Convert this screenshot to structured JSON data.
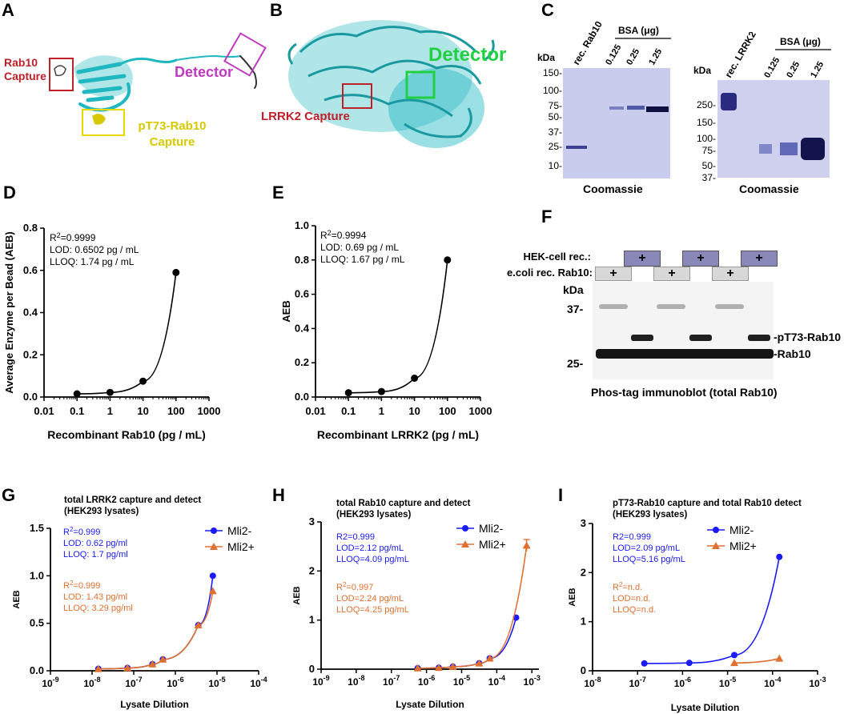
{
  "panels": {
    "A": "A",
    "B": "B",
    "C": "C",
    "D": "D",
    "E": "E",
    "F": "F",
    "G": "G",
    "H": "H",
    "I": "I"
  },
  "panelA": {
    "rab10_capture": "Rab10\nCapture",
    "rab10_line1": "Rab10",
    "rab10_line2": "Capture",
    "detector": "Detector",
    "pt73_line1": "pT73-Rab10",
    "pt73_line2": "Capture",
    "colors": {
      "rab10": "#c0202a",
      "detector": "#c038c0",
      "pt73": "#d8c800",
      "protein": "#20b8c0"
    }
  },
  "panelB": {
    "detector": "Detector",
    "lrrk2_capture": "LRRK2 Capture",
    "colors": {
      "detector": "#20d040",
      "capture": "#c0202a",
      "protein": "#20b8c0"
    }
  },
  "panelC": {
    "left": {
      "kda": "kDa",
      "markers": [
        "150-",
        "100-",
        "75-",
        "50-",
        "37-",
        "25-",
        "10-"
      ],
      "lanes": [
        "rec. Rab10",
        "0.125",
        "0.25",
        "1.25"
      ],
      "bsa": "BSA (μg)",
      "stain": "Coomassie"
    },
    "right": {
      "kda": "kDa",
      "markers": [
        "250-",
        "150-",
        "100-",
        "75-",
        "50-",
        "37-"
      ],
      "lanes": [
        "rec. LRRK2",
        "0.125",
        "0.25",
        "1.25"
      ],
      "bsa": "BSA (μg)",
      "stain": "Coomassie"
    }
  },
  "panelF": {
    "hek_label": "HEK-cell rec.:",
    "ecoli_label": "e.coli rec. Rab10:",
    "plus": "+",
    "kda": "kDa",
    "marker_37": "37-",
    "marker_25": "25-",
    "band_upper": "-pT73-Rab10",
    "band_lower": "-Rab10",
    "caption": "Phos-tag immunoblot (total Rab10)"
  },
  "chart_data": [
    {
      "id": "D",
      "type": "scatter",
      "title": "",
      "xlabel": "Recombinant Rab10 (pg / mL)",
      "ylabel": "Average Enzyme per Bead (AEB)",
      "xscale": "log",
      "xlim": [
        0.01,
        1000
      ],
      "ylim": [
        0,
        0.8
      ],
      "xticks": [
        "0.01",
        "0.1",
        "1",
        "10",
        "100",
        "1000"
      ],
      "yticks": [
        "0.0",
        "0.2",
        "0.4",
        "0.6",
        "0.8"
      ],
      "series": [
        {
          "name": "Rab10",
          "x": [
            0.1,
            1,
            10,
            100
          ],
          "values": [
            0.015,
            0.022,
            0.075,
            0.59
          ],
          "color": "#000000"
        }
      ],
      "annotations": [
        "R²=0.9999",
        "LOD: 0.6502 pg / mL",
        "LLOQ: 1.74 pg / mL"
      ]
    },
    {
      "id": "E",
      "type": "scatter",
      "title": "",
      "xlabel": "Recombinant LRRK2 (pg / mL)",
      "ylabel": "AEB",
      "xscale": "log",
      "xlim": [
        0.01,
        1000
      ],
      "ylim": [
        0,
        1.0
      ],
      "xticks": [
        "0.01",
        "0.1",
        "1",
        "10",
        "100",
        "1000"
      ],
      "yticks": [
        "0.0",
        "0.2",
        "0.4",
        "0.6",
        "0.8",
        "1.0"
      ],
      "series": [
        {
          "name": "LRRK2",
          "x": [
            0.1,
            1,
            10,
            100
          ],
          "values": [
            0.025,
            0.032,
            0.11,
            0.8
          ],
          "color": "#000000"
        }
      ],
      "annotations": [
        "R²=0.9994",
        "LOD: 0.69 pg / mL",
        "LLOQ: 1.67 pg / mL"
      ]
    },
    {
      "id": "G",
      "type": "line",
      "title": "total LRRK2 capture and detect\n(HEK293 lysates)",
      "title_lines": [
        "total LRRK2 capture and detect",
        "(HEK293 lysates)"
      ],
      "xlabel": "Lysate Dilution",
      "ylabel": "AEB",
      "xscale": "log",
      "xlim": [
        -9,
        -4
      ],
      "ylim": [
        0,
        1.5
      ],
      "xtick_exps": [
        "-9",
        "-8",
        "-7",
        "-6",
        "-5",
        "-4"
      ],
      "yticks": [
        "0.0",
        "0.5",
        "1.0",
        "1.5"
      ],
      "series": [
        {
          "name": "Mli2-",
          "color": "#1a1aff",
          "marker": "circle",
          "x": [
            -7.85,
            -7.15,
            -6.55,
            -6.3,
            -5.45,
            -5.1
          ],
          "values": [
            0.02,
            0.03,
            0.07,
            0.12,
            0.48,
            1.0
          ]
        },
        {
          "name": "Mli2+",
          "color": "#e07030",
          "marker": "triangle",
          "x": [
            -7.85,
            -7.15,
            -6.55,
            -6.3,
            -5.45,
            -5.1
          ],
          "values": [
            0.02,
            0.03,
            0.07,
            0.12,
            0.48,
            0.84
          ]
        }
      ],
      "annotations": {
        "blue": [
          "R²=0.999",
          "LOD: 0.62 pg/ml",
          "LLOQ: 1.7 pg/ml"
        ],
        "orange": [
          "R²=0.999",
          "LOD: 1.43 pg/ml",
          "LLOQ: 3.29 pg/ml"
        ]
      },
      "legend_position": "top-right"
    },
    {
      "id": "H",
      "type": "line",
      "title": "total Rab10 capture and detect\n(HEK293 lysates)",
      "title_lines": [
        "total Rab10 capture and detect",
        "(HEK293 lysates)"
      ],
      "xlabel": "Lysate Dilution",
      "ylabel": "AEB",
      "xscale": "log",
      "xlim": [
        -9,
        -2.8
      ],
      "ylim": [
        0,
        3
      ],
      "xtick_exps": [
        "-9",
        "-8",
        "-7",
        "-6",
        "-5",
        "-4",
        "-3"
      ],
      "yticks": [
        "0",
        "1",
        "2",
        "3"
      ],
      "series": [
        {
          "name": "Mli2-",
          "color": "#1a1aff",
          "marker": "circle",
          "x": [
            -6.25,
            -5.65,
            -5.25,
            -4.5,
            -4.2,
            -3.45
          ],
          "values": [
            0.02,
            0.03,
            0.05,
            0.12,
            0.22,
            1.05
          ]
        },
        {
          "name": "Mli2+",
          "color": "#e07030",
          "marker": "triangle",
          "x": [
            -6.25,
            -5.65,
            -5.25,
            -4.5,
            -4.2,
            -3.15
          ],
          "values": [
            0.02,
            0.03,
            0.05,
            0.12,
            0.22,
            2.52
          ]
        }
      ],
      "annotations": {
        "blue": [
          "R2=0.999",
          "LOD=2.12 pg/mL",
          "LLOQ=4.09 pg/mL"
        ],
        "orange": [
          "R²=0.997",
          "LOD=2.24 pg/mL",
          "LLOQ=4.25 pg/mL"
        ]
      },
      "legend_position": "top-right"
    },
    {
      "id": "I",
      "type": "line",
      "title": "pT73-Rab10 capture and total Rab10 detect\n(HEK293 lysates)",
      "title_lines": [
        "pT73-Rab10 capture and total Rab10 detect",
        "(HEK293 lysates)"
      ],
      "xlabel": "Lysate Dilution",
      "ylabel": "AEB",
      "xscale": "log",
      "xlim": [
        -8,
        -3
      ],
      "ylim": [
        0,
        3
      ],
      "xtick_exps": [
        "-8",
        "-7",
        "-6",
        "-5",
        "-4",
        "-3"
      ],
      "yticks": [
        "0",
        "1",
        "2",
        "3"
      ],
      "series": [
        {
          "name": "Mli2-",
          "color": "#1a1aff",
          "marker": "circle",
          "x": [
            -6.85,
            -5.85,
            -4.85,
            -3.85
          ],
          "values": [
            0.15,
            0.16,
            0.32,
            2.32
          ]
        },
        {
          "name": "Mli2+",
          "color": "#e07030",
          "marker": "triangle",
          "x": [
            -4.85,
            -3.85
          ],
          "values": [
            0.16,
            0.25
          ]
        }
      ],
      "annotations": {
        "blue": [
          "R2=0.999",
          "LOD=2.09 pg/mL",
          "LLOQ=5.16 pg/mL"
        ],
        "orange": [
          "R²=n.d.",
          "LOD=n.d.",
          "LLOQ=n.d."
        ]
      },
      "legend_position": "top-right"
    }
  ]
}
